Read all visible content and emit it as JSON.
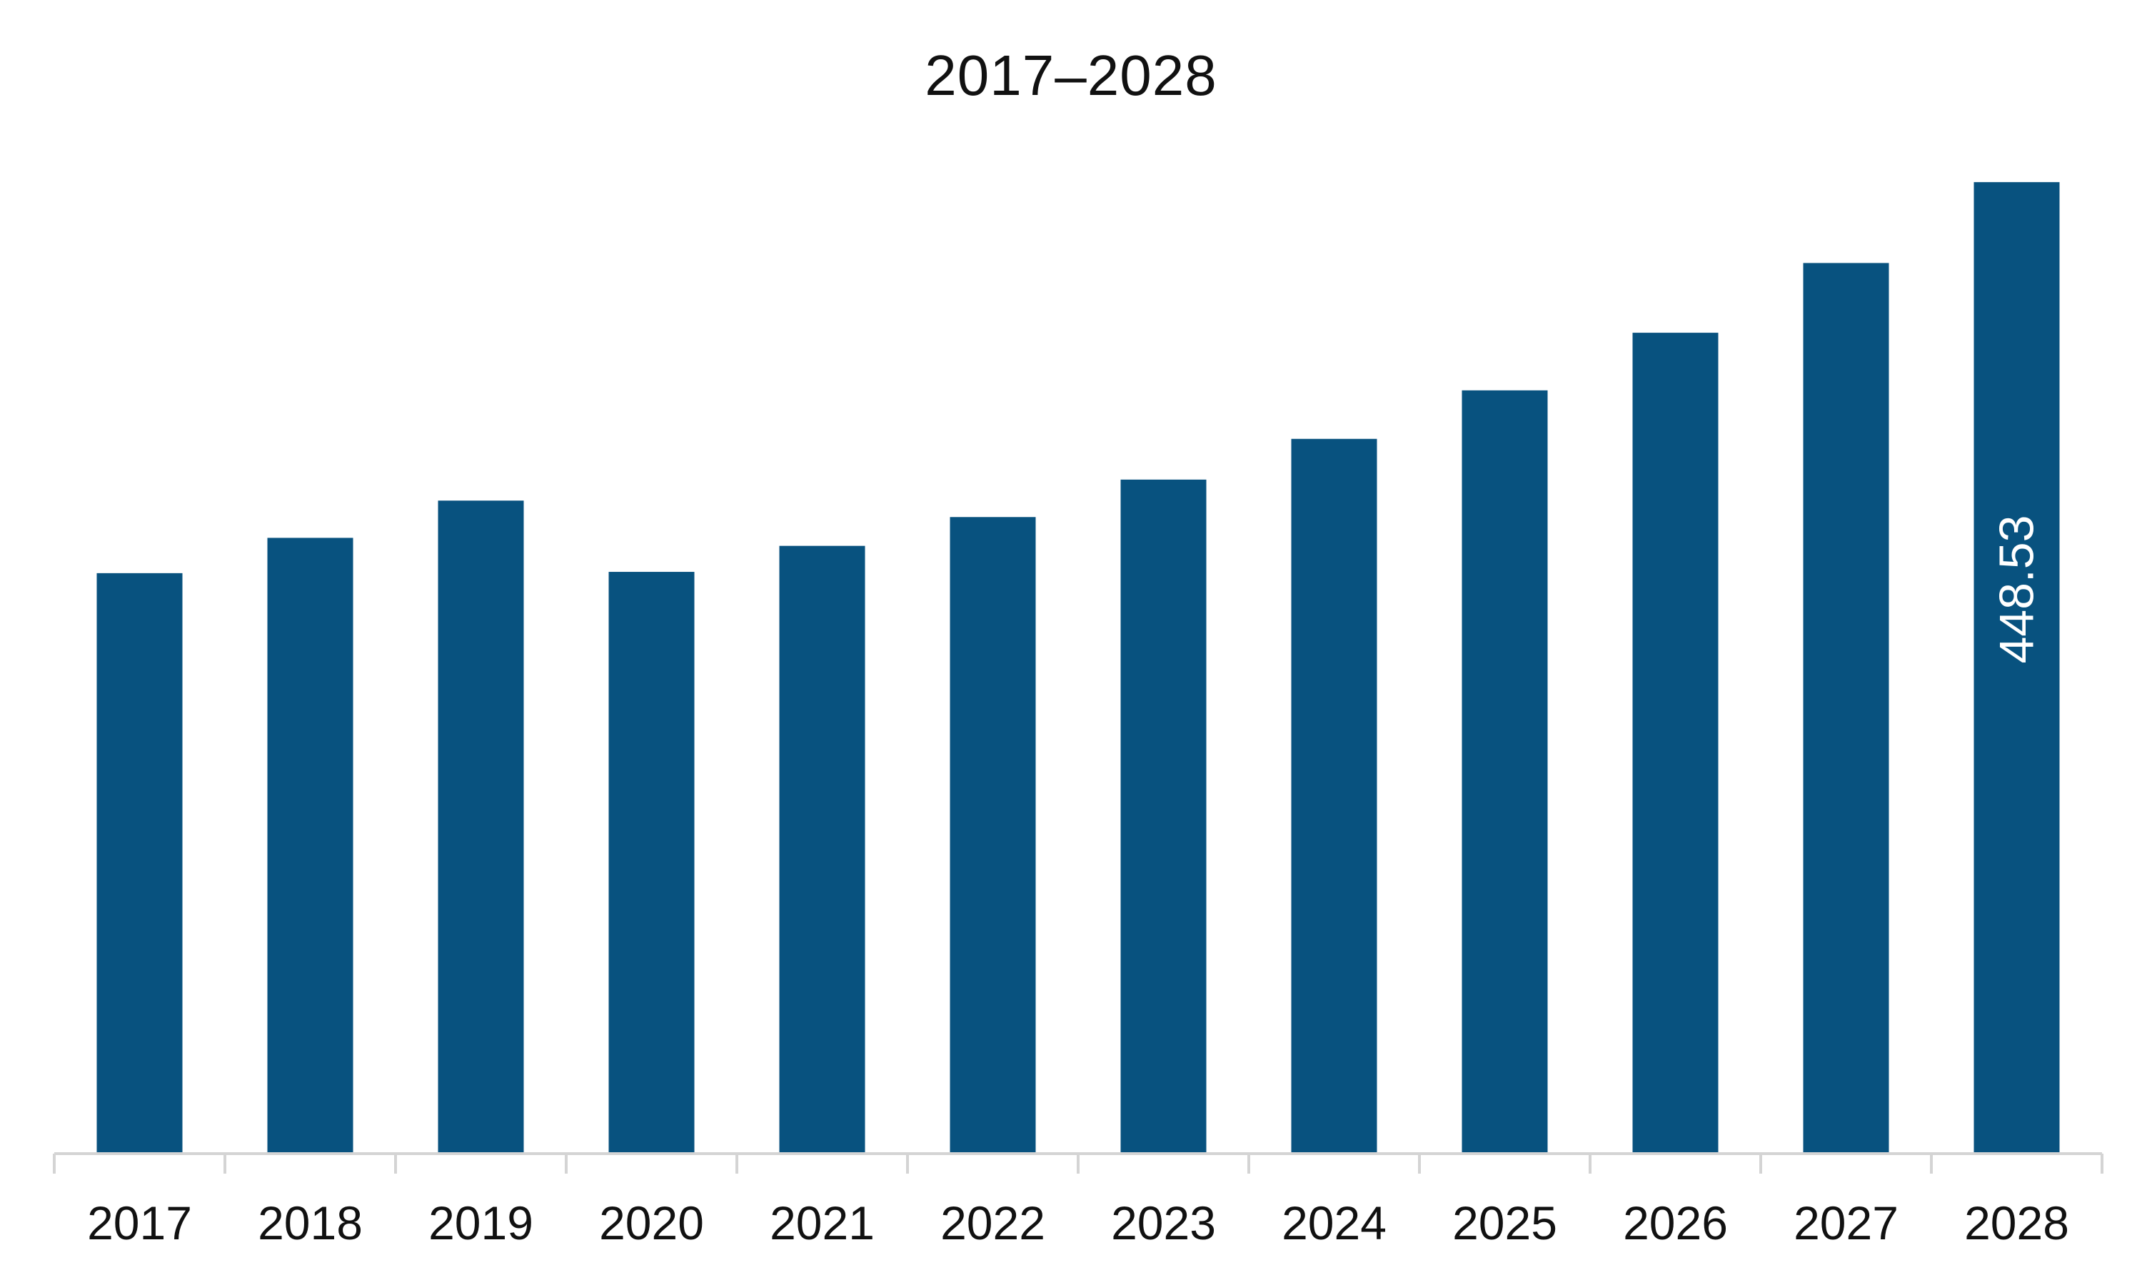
{
  "chart_data": {
    "type": "bar",
    "title": "2017–2028",
    "xlabel": "",
    "ylabel": "",
    "categories": [
      "2017",
      "2018",
      "2019",
      "2020",
      "2021",
      "2022",
      "2023",
      "2024",
      "2025",
      "2026",
      "2027",
      "2028"
    ],
    "values": [
      268.0,
      284.3,
      301.5,
      268.6,
      280.6,
      293.9,
      311.2,
      330.0,
      352.4,
      379.0,
      411.2,
      448.53
    ],
    "data_labels": [
      {
        "category": "2028",
        "text": "448.53"
      }
    ],
    "ylim": [
      0,
      470
    ],
    "grid": false,
    "legend": "none",
    "colors": {
      "bar": "#08527F",
      "axis": "#d4d4d4",
      "text": "#111111",
      "label_text": "#ffffff"
    }
  }
}
